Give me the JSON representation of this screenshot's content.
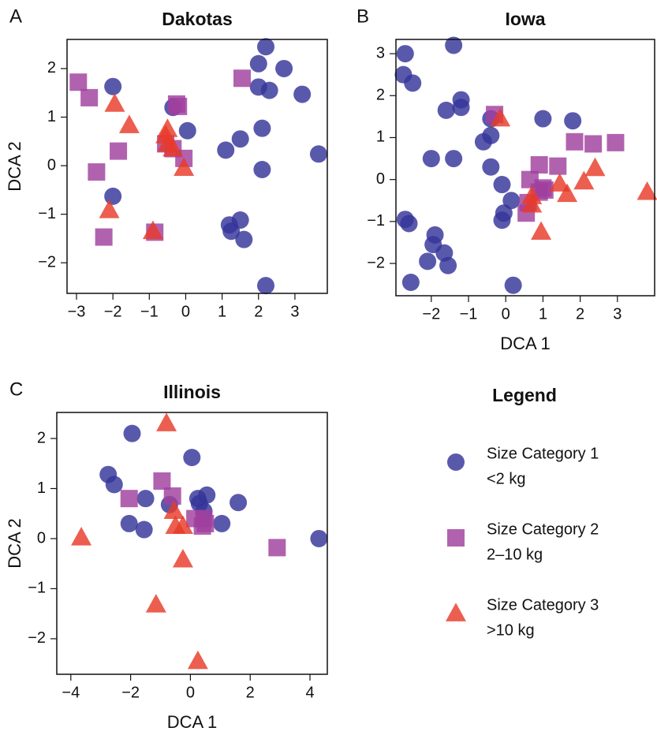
{
  "chart_data": [
    {
      "type": "scatter",
      "panel_label": "A",
      "title": "Dakotas",
      "ylabel": "DCA 2",
      "xlim": [
        -3.26,
        3.89
      ],
      "ylim": [
        -2.63,
        2.6
      ],
      "xticks": [
        {
          "value": -3,
          "label": "−3"
        },
        {
          "value": -2,
          "label": "−2"
        },
        {
          "value": -1,
          "label": "−1"
        },
        0,
        1,
        2,
        3
      ],
      "yticks": [
        {
          "value": -2,
          "label": "−2"
        },
        {
          "value": -1,
          "label": "−1"
        },
        0,
        1,
        2
      ],
      "series": [
        {
          "name": "Size Category 1",
          "color": "#34349a",
          "marker": "circle",
          "x": [
            -2,
            -2,
            -0.35,
            0.05,
            1.1,
            1.5,
            1.2,
            1.25,
            1.5,
            1.6,
            2.2,
            2.2,
            2.0,
            2.7,
            2.0,
            2.3,
            3.2,
            2.1,
            2.1,
            3.65
          ],
          "values": [
            1.63,
            -0.63,
            1.2,
            0.72,
            0.32,
            0.55,
            -1.22,
            -1.35,
            -1.12,
            -1.52,
            -2.47,
            2.45,
            2.1,
            2.0,
            1.62,
            1.55,
            1.47,
            0.77,
            -0.08,
            0.24
          ]
        },
        {
          "name": "Size Category 2",
          "color": "#a0409e",
          "marker": "square",
          "x": [
            -2.95,
            -2.65,
            -2.45,
            -1.85,
            -2.25,
            -0.25,
            -0.2,
            -0.55,
            -0.35,
            -0.05,
            -0.85,
            1.55
          ],
          "values": [
            1.72,
            1.4,
            -0.13,
            0.3,
            -1.47,
            1.27,
            1.22,
            0.45,
            0.35,
            0.15,
            -1.37,
            1.8
          ]
        },
        {
          "name": "Size Category 3",
          "color": "#e83a28",
          "marker": "triangle",
          "x": [
            -1.95,
            -1.55,
            -2.1,
            -0.9,
            -0.55,
            -0.5,
            -0.35,
            -0.05,
            -0.5
          ],
          "values": [
            1.27,
            0.83,
            -0.92,
            -1.35,
            0.62,
            0.75,
            0.35,
            -0.05,
            0.45
          ]
        }
      ]
    },
    {
      "type": "scatter",
      "panel_label": "B",
      "title": "Iowa",
      "xlabel": "DCA 1",
      "xlim": [
        -2.95,
        4.0
      ],
      "ylim": [
        -2.77,
        3.34
      ],
      "xticks": [
        {
          "value": -2,
          "label": "−2"
        },
        {
          "value": -1,
          "label": "−1"
        },
        0,
        1,
        2,
        3
      ],
      "yticks": [
        {
          "value": -2,
          "label": "−2"
        },
        {
          "value": -1,
          "label": "−1"
        },
        0,
        1,
        2,
        3
      ],
      "series": [
        {
          "name": "Size Category 1",
          "color": "#34349a",
          "marker": "circle",
          "x": [
            -2.7,
            -2.75,
            -2.5,
            -1.4,
            -1.2,
            -1.2,
            -1.6,
            -0.4,
            -0.4,
            -0.6,
            -2.0,
            -1.4,
            -0.4,
            1.0,
            1.8,
            -0.1,
            0.15,
            -0.05,
            -0.1,
            -2.7,
            -2.6,
            -1.9,
            -1.95,
            -1.65,
            -2.1,
            -1.55,
            -2.55,
            0.2
          ],
          "values": [
            3.0,
            2.5,
            2.3,
            3.2,
            1.9,
            1.72,
            1.65,
            1.45,
            1.05,
            0.9,
            0.5,
            0.5,
            0.3,
            1.45,
            1.4,
            -0.12,
            -0.5,
            -0.8,
            -0.97,
            -0.95,
            -1.05,
            -1.32,
            -1.55,
            -1.75,
            -1.95,
            -2.05,
            -2.45,
            -2.52
          ]
        },
        {
          "name": "Size Category 2",
          "color": "#a0409e",
          "marker": "square",
          "x": [
            -0.3,
            1.85,
            2.35,
            2.95,
            0.9,
            1.4,
            0.65,
            1.0,
            0.9,
            0.6,
            0.55,
            1.05
          ],
          "values": [
            1.55,
            0.9,
            0.85,
            0.88,
            0.35,
            0.32,
            0.0,
            -0.2,
            -0.3,
            -0.55,
            -0.8,
            -0.25
          ]
        },
        {
          "name": "Size Category 3",
          "color": "#e83a28",
          "marker": "triangle",
          "x": [
            -0.15,
            2.4,
            2.1,
            1.45,
            1.65,
            0.7,
            0.7,
            3.8,
            0.95
          ],
          "values": [
            1.45,
            0.27,
            -0.05,
            -0.1,
            -0.35,
            -0.4,
            -0.6,
            -0.3,
            -1.25
          ]
        }
      ]
    },
    {
      "type": "scatter",
      "panel_label": "C",
      "title": "Illinois",
      "xlabel": "DCA 1",
      "ylabel": "DCA 2",
      "xlim": [
        -4.47,
        4.58
      ],
      "ylim": [
        -2.71,
        2.52
      ],
      "xticks": [
        {
          "value": -4,
          "label": "−4"
        },
        {
          "value": -2,
          "label": "−2"
        },
        0,
        2,
        4
      ],
      "yticks": [
        {
          "value": -2,
          "label": "−2"
        },
        {
          "value": -1,
          "label": "−1"
        },
        0,
        1,
        2
      ],
      "series": [
        {
          "name": "Size Category 1",
          "color": "#34349a",
          "marker": "circle",
          "x": [
            -1.95,
            0.05,
            -2.75,
            -2.55,
            -1.5,
            0.25,
            0.55,
            1.6,
            -0.7,
            0.3,
            0.45,
            -2.05,
            -1.55,
            1.05,
            4.3
          ],
          "values": [
            2.1,
            1.62,
            1.28,
            1.08,
            0.8,
            0.8,
            0.87,
            0.72,
            0.68,
            0.7,
            0.55,
            0.3,
            0.18,
            0.3,
            0.0
          ]
        },
        {
          "name": "Size Category 2",
          "color": "#a0409e",
          "marker": "square",
          "x": [
            -2.05,
            -0.95,
            -0.6,
            0.45,
            0.5,
            0.4,
            0.15,
            2.9
          ],
          "values": [
            0.8,
            1.15,
            0.85,
            0.4,
            0.3,
            0.25,
            0.4,
            -0.18
          ]
        },
        {
          "name": "Size Category 3",
          "color": "#e83a28",
          "marker": "triangle",
          "x": [
            -0.8,
            -3.65,
            -0.55,
            -0.5,
            -0.25,
            -0.25,
            -1.15,
            0.25
          ],
          "values": [
            2.3,
            0.02,
            0.55,
            0.25,
            0.25,
            -0.42,
            -1.32,
            -2.45
          ]
        }
      ]
    }
  ],
  "legend": {
    "title": "Legend",
    "details": [
      "<2 kg",
      "2–10 kg",
      ">10 kg"
    ]
  }
}
